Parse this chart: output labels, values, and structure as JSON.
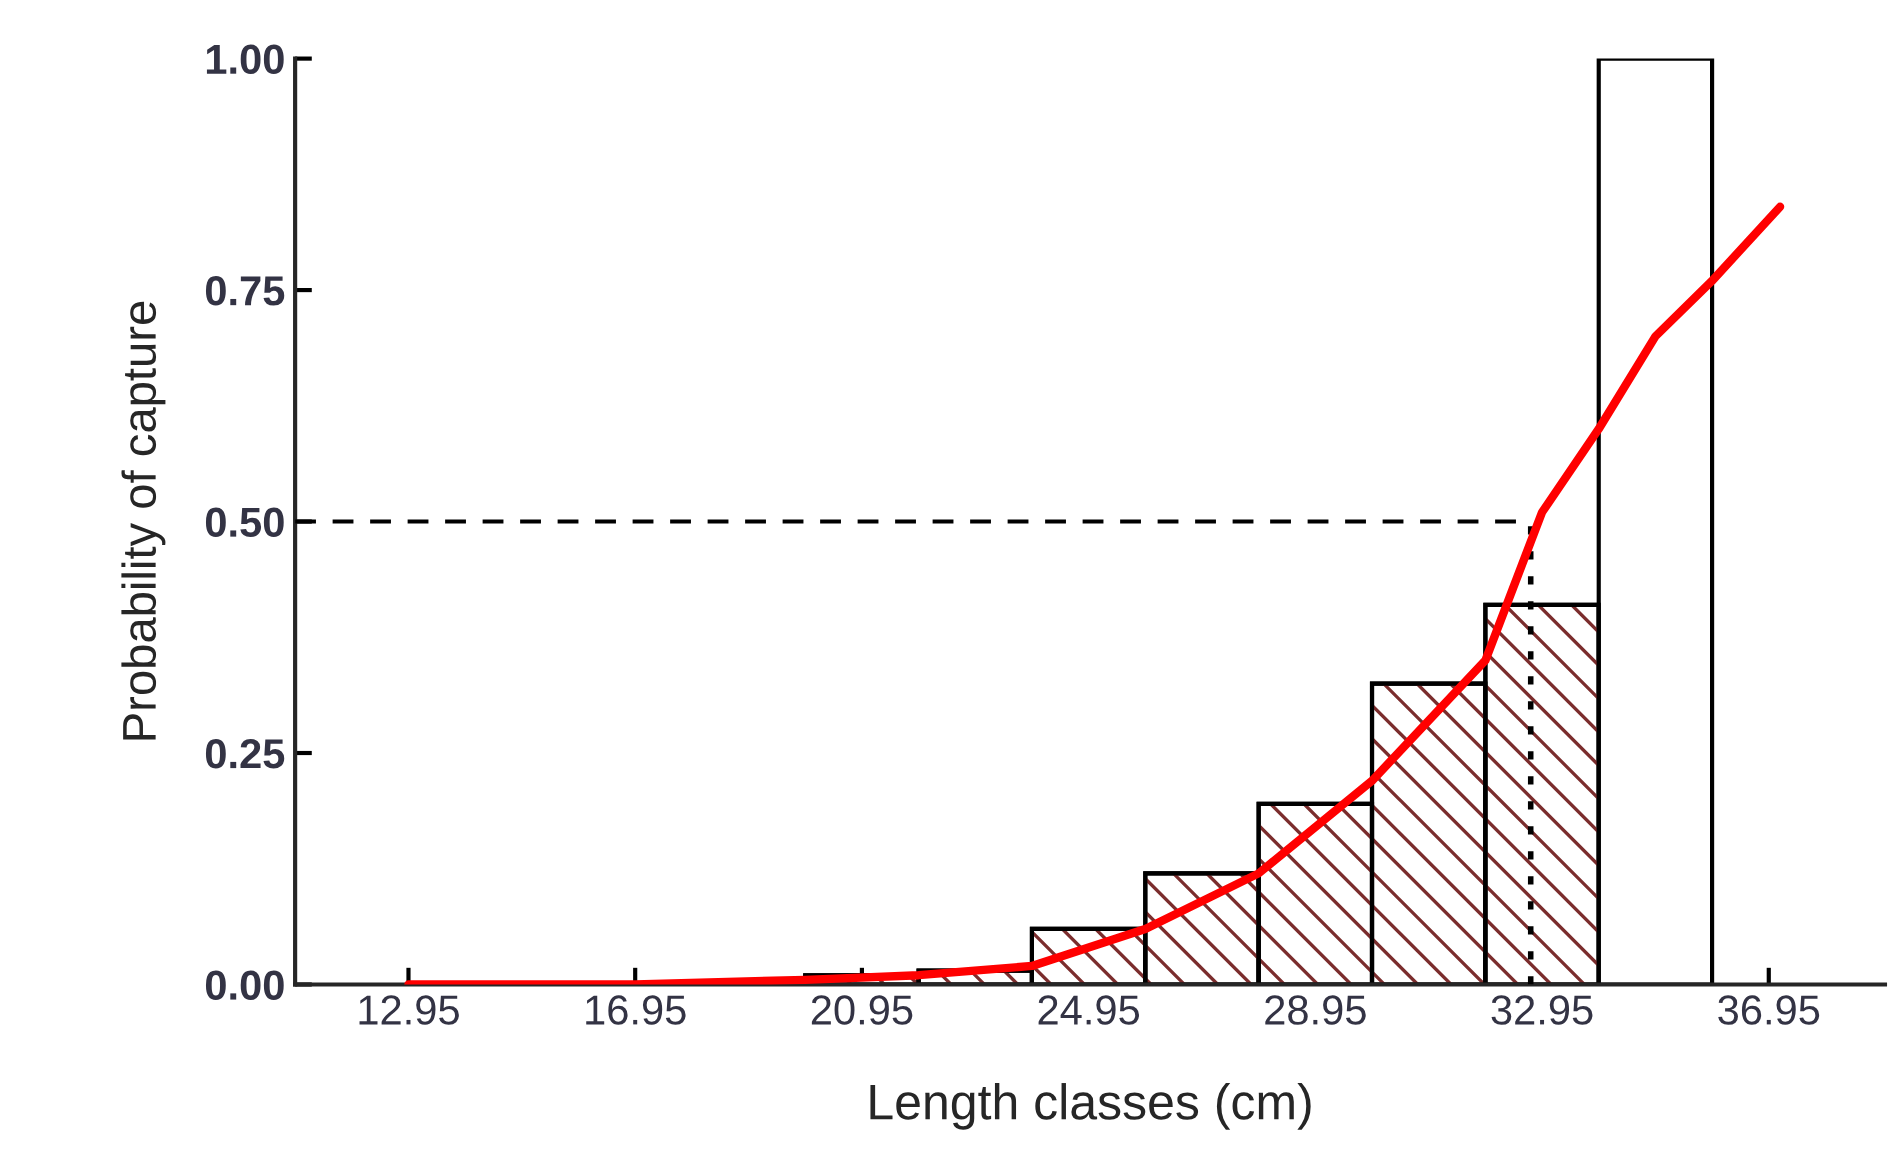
{
  "chart_data": {
    "type": "histogram",
    "xlabel": "Length classes (cm)",
    "ylabel": "Probability of capture",
    "bins": [
      19.95,
      21.95,
      23.95,
      25.95,
      27.95,
      29.95,
      31.95,
      33.95,
      35.95
    ],
    "values": [
      0.01,
      0.015,
      0.06,
      0.12,
      0.195,
      0.325,
      0.41,
      1.0
    ],
    "colors": [
      "#7b2d2d",
      "#7b2d2d",
      "#7b2d2d",
      "#7b2d2d",
      "#7b2d2d",
      "#7b2d2d",
      "#7b2d2d",
      "#ffffff"
    ],
    "series": [
      {
        "type": "line",
        "color": "#ff0000",
        "x": [
          12.95,
          16.95,
          19.95,
          21.95,
          23.95,
          25.95,
          27.95,
          29.95,
          31.95,
          32.95,
          33.95,
          34.95,
          35.95,
          37.15
        ],
        "values": [
          0.0,
          0.0,
          0.005,
          0.01,
          0.02,
          0.06,
          0.12,
          0.22,
          0.35,
          0.51,
          0.6,
          0.7,
          0.76,
          0.84
        ]
      }
    ],
    "ref_lines": [
      {
        "axis": "y",
        "value": 0.5,
        "line_style": "dashed",
        "color": "#000000"
      },
      {
        "axis": "x",
        "value": 32.75,
        "line_style": "dotted",
        "color": "#000000"
      }
    ],
    "xlim": [
      10.95,
      39.0
    ],
    "ylim": [
      0,
      1.0
    ],
    "xticks": [
      12.95,
      16.95,
      20.95,
      24.95,
      28.95,
      32.95,
      36.95
    ],
    "yticks": [
      {
        "value": 0,
        "label": "0.00"
      },
      {
        "value": 0.25,
        "label": "0.25"
      },
      {
        "value": 0.5,
        "label": "0.50"
      },
      {
        "value": 0.75,
        "label": "0.75"
      },
      {
        "value": 1.0,
        "label": "1.00"
      }
    ],
    "grid": false,
    "legend": false
  }
}
